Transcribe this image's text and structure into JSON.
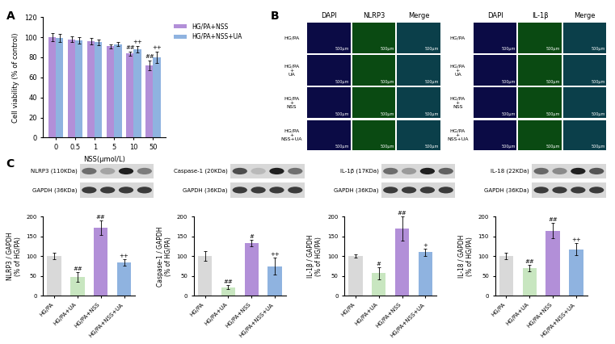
{
  "chart_data": [
    {
      "type": "bar",
      "panel_label": "A",
      "x_label": "NSS(μmol/L)",
      "y_label": "Cell viability (% of control)",
      "categories": [
        "0",
        "0.5",
        "1",
        "5",
        "10",
        "50"
      ],
      "ylim": [
        0,
        120
      ],
      "yticks": [
        0,
        20,
        40,
        60,
        80,
        100,
        120
      ],
      "legend": "upper left",
      "series": [
        {
          "name": "HG/PA+NSS",
          "color": "#b28fd8",
          "values": [
            100,
            98,
            96,
            91,
            84,
            72
          ],
          "errors": [
            4,
            3,
            3,
            2,
            2,
            5
          ],
          "annotations": [
            null,
            null,
            null,
            null,
            "##",
            "##"
          ]
        },
        {
          "name": "HG/PA+NSS+UA",
          "color": "#8fb3e0",
          "values": [
            99,
            97,
            95,
            93,
            88,
            80
          ],
          "errors": [
            4,
            3,
            3,
            2,
            3,
            6
          ],
          "annotations": [
            null,
            null,
            null,
            null,
            "++",
            "++"
          ]
        }
      ]
    },
    {
      "type": "bar",
      "panel_label": "C",
      "blot_labels": [
        "NLRP3 (110KDa)",
        "GAPDH (36KDa)"
      ],
      "y_label": "NLRP3 / GAPDH\n(% of HG/PA)",
      "categories": [
        "HG/PA",
        "HG/PA+UA",
        "HG/PA+NSS",
        "HG/PA+NSS+UA"
      ],
      "values": [
        100,
        48,
        172,
        85
      ],
      "errors": [
        8,
        12,
        18,
        8
      ],
      "annotations": [
        null,
        "##",
        "##",
        "++"
      ],
      "colors": [
        "#d9d9d9",
        "#c8e6c0",
        "#b28fd8",
        "#8fb3e0"
      ],
      "ylim": [
        0,
        200
      ],
      "yticks": [
        0,
        50,
        100,
        150,
        200
      ]
    },
    {
      "type": "bar",
      "blot_labels": [
        "Caspase-1 (20KDa)",
        "GAPDH (36KDa)"
      ],
      "y_label": "Caspase-1 / GAPDH\n(% of HG/PA)",
      "categories": [
        "HG/PA",
        "HG/PA+UA",
        "HG/PA+NSS",
        "HG/PA+NSS+UA"
      ],
      "values": [
        100,
        22,
        133,
        75
      ],
      "errors": [
        12,
        5,
        8,
        22
      ],
      "annotations": [
        null,
        "##",
        "#",
        "++"
      ],
      "colors": [
        "#d9d9d9",
        "#c8e6c0",
        "#b28fd8",
        "#8fb3e0"
      ],
      "ylim": [
        0,
        200
      ],
      "yticks": [
        0,
        50,
        100,
        150,
        200
      ]
    },
    {
      "type": "bar",
      "blot_labels": [
        "IL-1β (17KDa)",
        "GAPDH (36KDa)"
      ],
      "y_label": "IL-1β / GAPDH\n(% of HG/PA)",
      "categories": [
        "HG/PA",
        "HG/PA+UA",
        "HG/PA+NSS",
        "HG/PA+NSS+UA"
      ],
      "values": [
        100,
        57,
        170,
        110
      ],
      "errors": [
        4,
        15,
        30,
        10
      ],
      "annotations": [
        null,
        "#",
        "##",
        "+"
      ],
      "colors": [
        "#d9d9d9",
        "#c8e6c0",
        "#b28fd8",
        "#8fb3e0"
      ],
      "ylim": [
        0,
        200
      ],
      "yticks": [
        0,
        50,
        100,
        150,
        200
      ]
    },
    {
      "type": "bar",
      "blot_labels": [
        "IL-18 (22KDa)",
        "GAPDH (36KDa)"
      ],
      "y_label": "IL-18 / GAPDH\n(% of HG/PA)",
      "categories": [
        "HG/PA",
        "HG/PA+UA",
        "HG/PA+NSS",
        "HG/PA+NSS+UA"
      ],
      "values": [
        100,
        70,
        165,
        118
      ],
      "errors": [
        8,
        8,
        20,
        15
      ],
      "annotations": [
        null,
        "##",
        "##",
        "++"
      ],
      "colors": [
        "#d9d9d9",
        "#c8e6c0",
        "#b28fd8",
        "#8fb3e0"
      ],
      "ylim": [
        0,
        200
      ],
      "yticks": [
        0,
        50,
        100,
        150,
        200
      ]
    }
  ],
  "image_panel": {
    "panel_label": "B",
    "groups": [
      {
        "columns": [
          "DAPI",
          "NLRP3",
          "Merge"
        ]
      },
      {
        "columns": [
          "DAPI",
          "IL-1β",
          "Merge"
        ]
      }
    ],
    "rows": [
      "HG/PA",
      "HG/PA\n+\nUA",
      "HG/PA\n+\nNSS",
      "HG/PA\n+\nNSS+UA"
    ],
    "scale_bar": "500μm"
  }
}
